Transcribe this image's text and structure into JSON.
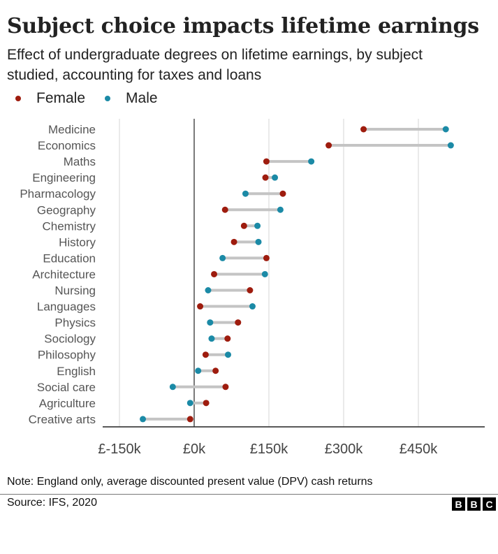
{
  "header": {
    "title": "Subject choice impacts lifetime earnings",
    "subtitle": "Effect of undergraduate degrees on lifetime earnings, by subject studied, accounting for taxes and loans"
  },
  "legend": [
    {
      "label": "Female",
      "color": "#9e1c0e"
    },
    {
      "label": "Male",
      "color": "#1b8aa6"
    }
  ],
  "footer": {
    "note": "Note: England only, average discounted present value (DPV) cash returns",
    "source": "Source: IFS, 2020",
    "logo_letters": [
      "B",
      "B",
      "C"
    ]
  },
  "chart_data": {
    "type": "dumbbell",
    "title": "Subject choice impacts lifetime earnings",
    "xlabel": "",
    "ylabel": "",
    "xlim": [
      -150000,
      590000
    ],
    "x_ticks": [
      -150000,
      0,
      150000,
      300000,
      450000
    ],
    "x_tick_labels": [
      "£-150k",
      "£0k",
      "£150k",
      "£300k",
      "£450k"
    ],
    "grid": true,
    "series_names": [
      "Female",
      "Male"
    ],
    "categories": [
      "Medicine",
      "Economics",
      "Maths",
      "Engineering",
      "Pharmacology",
      "Geography",
      "Chemistry",
      "History",
      "Education",
      "Architecture",
      "Nursing",
      "Languages",
      "Physics",
      "Sociology",
      "Philosophy",
      "English",
      "Social care",
      "Agriculture",
      "Creative arts"
    ],
    "female": [
      340000,
      270000,
      145000,
      143000,
      178000,
      62000,
      100000,
      80000,
      145000,
      40000,
      112000,
      12000,
      88000,
      67000,
      23000,
      43000,
      63000,
      24000,
      -8000
    ],
    "male": [
      505000,
      515000,
      235000,
      162000,
      103000,
      173000,
      127000,
      129000,
      57000,
      142000,
      28000,
      117000,
      32000,
      35000,
      68000,
      8000,
      -43000,
      -8000,
      -103000
    ]
  }
}
